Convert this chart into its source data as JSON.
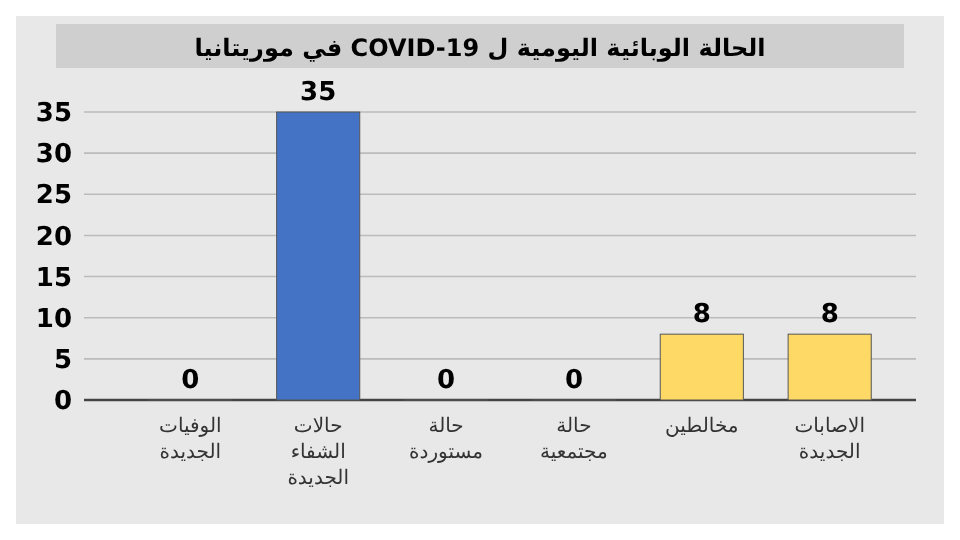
{
  "chart_data": {
    "type": "bar",
    "title": "الحالة الوبائية اليومية ل COVID-19 في موريتانيا",
    "categories": [
      "الوفيات الجديدة",
      "حالات الشفاء الجديدة",
      "حالة مستوردة",
      "حالة مجتمعية",
      "مخالطين",
      "الاصابات الجديدة"
    ],
    "values": [
      0,
      35,
      0,
      0,
      8,
      8
    ],
    "colors": [
      "#c00000",
      "#4472c4",
      "#c9a94a",
      "#c9a94a",
      "#ffd966",
      "#ffd966"
    ],
    "ylim": [
      0,
      35
    ],
    "yticks": [
      0,
      5,
      10,
      15,
      20,
      25,
      30,
      35
    ],
    "grid": "y",
    "data_labels": true
  }
}
